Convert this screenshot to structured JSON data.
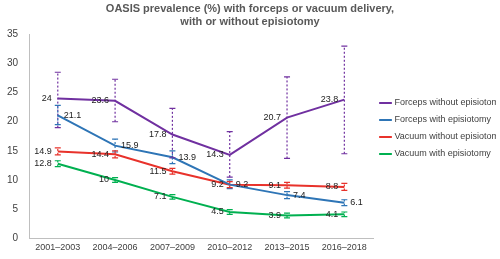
{
  "chart_data": {
    "type": "line",
    "title": [
      "OASIS prevalence (%) with forceps or vacuum delivery,",
      "with or without episiotomy"
    ],
    "categories": [
      "2001–2003",
      "2004–2006",
      "2007–2009",
      "2010–2012",
      "2013–2015",
      "2016–2018"
    ],
    "series": [
      {
        "name": "Forceps without episiotomy",
        "color": "#7030a0",
        "values": [
          24,
          23.6,
          17.8,
          14.3,
          20.7,
          23.8
        ],
        "error_low": [
          19,
          20,
          13.8,
          10.5,
          13.7,
          14.5
        ],
        "error_high": [
          28.5,
          27.3,
          22.3,
          18.3,
          27.7,
          33
        ]
      },
      {
        "name": "Forceps with episiotomy",
        "color": "#2e75b6",
        "values": [
          21.1,
          15.9,
          13.9,
          9.2,
          7.4,
          6.1
        ],
        "error_low": [
          19.5,
          14.8,
          12.8,
          8.5,
          6.8,
          5.6
        ],
        "error_high": [
          22.8,
          17,
          15,
          10,
          8,
          6.6
        ]
      },
      {
        "name": "Vacuum without episiotomy",
        "color": "#e8322b",
        "values": [
          14.9,
          14.4,
          11.5,
          9.2,
          9.1,
          8.8
        ],
        "error_low": [
          14.3,
          13.8,
          11,
          8.7,
          8.6,
          8.2
        ],
        "error_high": [
          15.5,
          15,
          12,
          9.7,
          9.6,
          9.4
        ]
      },
      {
        "name": "Vacuum with episiotomy",
        "color": "#00b050",
        "values": [
          12.8,
          10,
          7.1,
          4.5,
          3.9,
          4.1
        ],
        "error_low": [
          12.3,
          9.6,
          6.7,
          4.1,
          3.5,
          3.7
        ],
        "error_high": [
          13.3,
          10.4,
          7.5,
          4.9,
          4.3,
          4.5
        ]
      }
    ],
    "ylim": [
      0,
      35
    ],
    "yticks": [
      0,
      5,
      10,
      15,
      20,
      25,
      30,
      35
    ],
    "grid": false,
    "legend": "right",
    "data_labels": true
  }
}
